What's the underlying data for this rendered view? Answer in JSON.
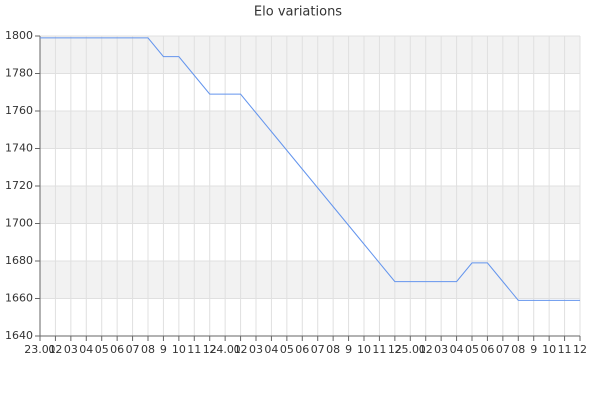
{
  "chart_data": {
    "type": "line",
    "title": "Elo variations",
    "categories": [
      "23.01",
      "02",
      "03",
      "04",
      "05",
      "06",
      "07",
      "08",
      "9",
      "10",
      "11",
      "12",
      "24.01",
      "02",
      "03",
      "04",
      "05",
      "06",
      "07",
      "08",
      "9",
      "10",
      "11",
      "12",
      "25.01",
      "02",
      "03",
      "04",
      "05",
      "06",
      "07",
      "08",
      "9",
      "10",
      "11",
      "12"
    ],
    "series": [
      {
        "name": "Elo",
        "color": "#6495ed",
        "values": [
          1799,
          1799,
          1799,
          1799,
          1799,
          1799,
          1799,
          1799,
          1789,
          1789,
          1779,
          1769,
          1769,
          1769,
          1759,
          1749,
          1739,
          1729,
          1719,
          1709,
          1699,
          1689,
          1679,
          1669,
          1669,
          1669,
          1669,
          1669,
          1679,
          1679,
          1669,
          1659,
          1659,
          1659,
          1659,
          1659
        ]
      }
    ],
    "ylim": [
      1640,
      1800
    ],
    "yticks": [
      1640,
      1660,
      1680,
      1700,
      1720,
      1740,
      1760,
      1780,
      1800
    ],
    "grid": true
  }
}
